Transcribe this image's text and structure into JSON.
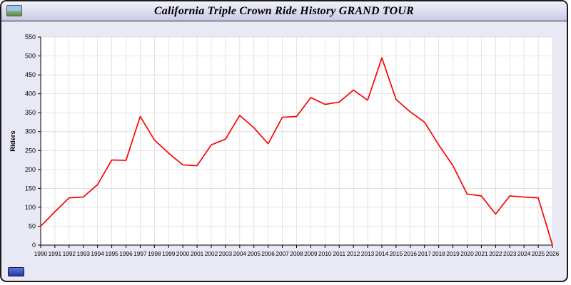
{
  "window": {
    "title": "California Triple Crown Ride History GRAND TOUR"
  },
  "colors": {
    "window_background": "#e9e9f5",
    "title_bar": "#d6d6ee",
    "plot_background": "#ffffff",
    "grid": "#d8d8d8",
    "axis": "#000000",
    "line": "#ff0000",
    "footer_button": "#2738a6"
  },
  "chart_data": {
    "type": "line",
    "title": "California Triple Crown Ride History GRAND TOUR",
    "xlabel": "",
    "ylabel": "Riders",
    "ylim": [
      0,
      550
    ],
    "ytick_step": 50,
    "grid": true,
    "legend": "none",
    "line_color": "#ff0000",
    "x": [
      1990,
      1991,
      1992,
      1993,
      1994,
      1995,
      1996,
      1997,
      1998,
      1999,
      2000,
      2001,
      2002,
      2003,
      2004,
      2005,
      2006,
      2007,
      2008,
      2009,
      2010,
      2011,
      2012,
      2013,
      2014,
      2015,
      2016,
      2017,
      2018,
      2019,
      2020,
      2021,
      2022,
      2023,
      2024,
      2025,
      2026
    ],
    "values": [
      50,
      88,
      125,
      127,
      160,
      225,
      224,
      340,
      278,
      243,
      212,
      210,
      265,
      280,
      343,
      310,
      268,
      338,
      340,
      390,
      372,
      378,
      410,
      383,
      495,
      385,
      352,
      325,
      265,
      210,
      135,
      130,
      82,
      130,
      127,
      125,
      0
    ]
  }
}
